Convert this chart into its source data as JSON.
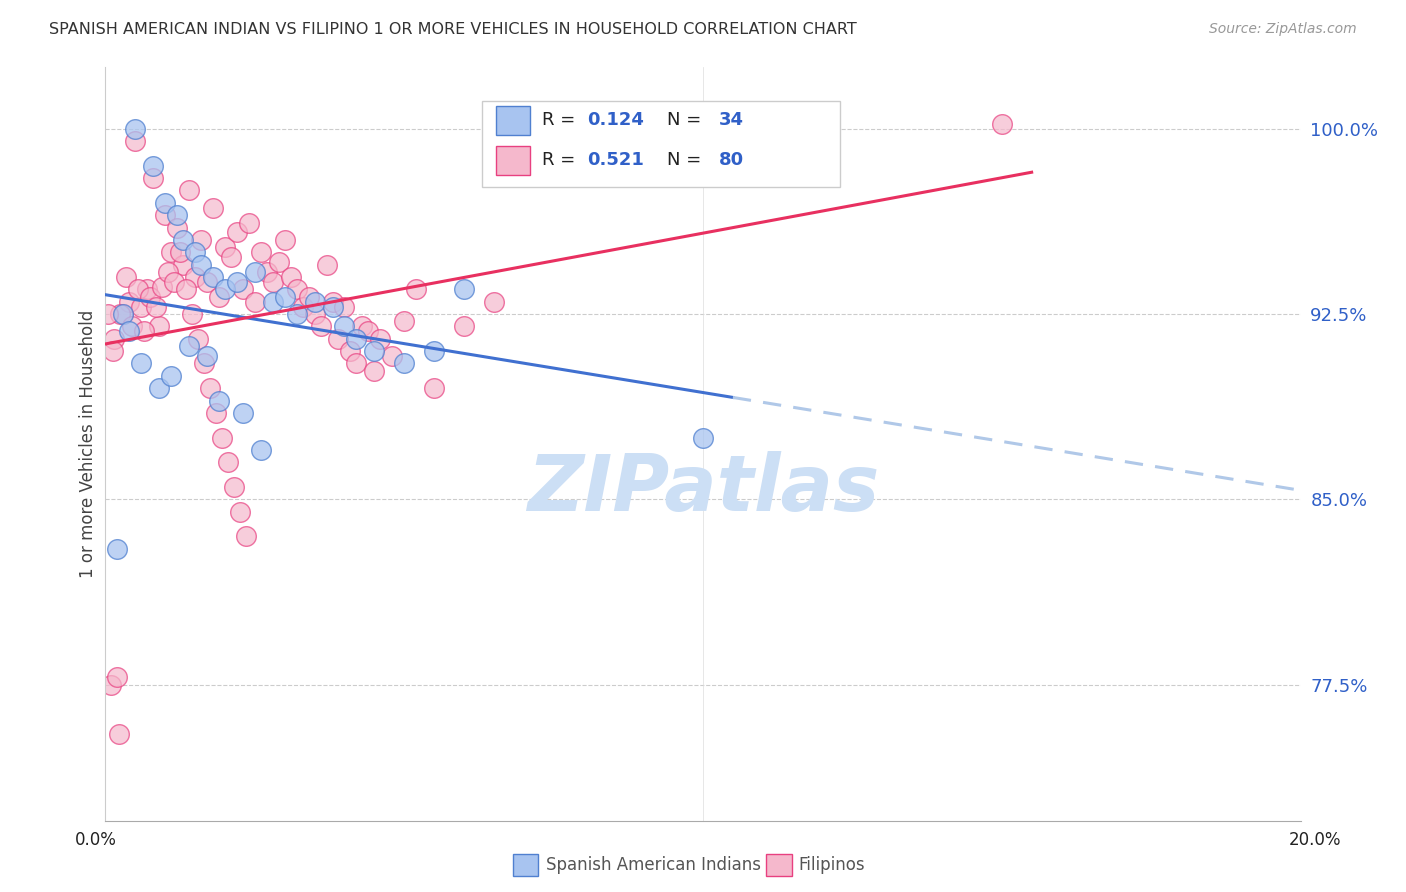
{
  "title": "SPANISH AMERICAN INDIAN VS FILIPINO 1 OR MORE VEHICLES IN HOUSEHOLD CORRELATION CHART",
  "source": "Source: ZipAtlas.com",
  "ylabel": "1 or more Vehicles in Household",
  "y_tick_values": [
    77.5,
    85.0,
    92.5,
    100.0
  ],
  "xlim": [
    0.0,
    20.0
  ],
  "ylim": [
    72.0,
    102.5
  ],
  "legend_blue_r": "0.124",
  "legend_blue_n": "34",
  "legend_pink_r": "0.521",
  "legend_pink_n": "80",
  "blue_fill_color": "#a8c4f0",
  "pink_fill_color": "#f5b8cc",
  "blue_edge_color": "#5080d0",
  "pink_edge_color": "#e84080",
  "blue_line_color": "#4070d0",
  "pink_line_color": "#e83060",
  "blue_dash_color": "#b0c8e8",
  "watermark_color": "#ccdff5",
  "blue_scatter_x": [
    0.5,
    0.8,
    1.0,
    1.2,
    1.3,
    1.5,
    1.6,
    1.8,
    2.0,
    2.2,
    2.5,
    2.8,
    3.0,
    3.2,
    3.5,
    3.8,
    4.0,
    4.2,
    4.5,
    5.0,
    5.5,
    6.0,
    0.3,
    0.4,
    0.6,
    0.9,
    1.1,
    1.4,
    1.7,
    1.9,
    2.3,
    2.6,
    10.0,
    0.2
  ],
  "blue_scatter_y": [
    100.0,
    98.5,
    97.0,
    96.5,
    95.5,
    95.0,
    94.5,
    94.0,
    93.5,
    93.8,
    94.2,
    93.0,
    93.2,
    92.5,
    93.0,
    92.8,
    92.0,
    91.5,
    91.0,
    90.5,
    91.0,
    93.5,
    92.5,
    91.8,
    90.5,
    89.5,
    90.0,
    91.2,
    90.8,
    89.0,
    88.5,
    87.0,
    87.5,
    83.0
  ],
  "pink_scatter_x": [
    0.1,
    0.2,
    0.3,
    0.4,
    0.5,
    0.6,
    0.7,
    0.8,
    0.9,
    1.0,
    1.1,
    1.2,
    1.3,
    1.4,
    1.5,
    1.6,
    1.7,
    1.8,
    1.9,
    2.0,
    2.1,
    2.2,
    2.3,
    2.4,
    2.5,
    2.6,
    2.7,
    2.8,
    2.9,
    3.0,
    3.1,
    3.2,
    3.3,
    3.4,
    3.5,
    3.6,
    3.7,
    3.8,
    3.9,
    4.0,
    4.1,
    4.2,
    4.3,
    4.4,
    4.5,
    4.6,
    4.8,
    5.0,
    5.2,
    5.5,
    6.0,
    6.5,
    7.0,
    0.15,
    0.25,
    0.35,
    0.45,
    0.55,
    0.65,
    0.75,
    0.85,
    0.95,
    1.05,
    1.15,
    1.25,
    1.35,
    1.45,
    1.55,
    1.65,
    1.75,
    1.85,
    1.95,
    2.05,
    2.15,
    2.25,
    2.35,
    15.0,
    0.05,
    0.12,
    0.22
  ],
  "pink_scatter_y": [
    77.5,
    77.8,
    92.5,
    93.0,
    99.5,
    92.8,
    93.5,
    98.0,
    92.0,
    96.5,
    95.0,
    96.0,
    94.5,
    97.5,
    94.0,
    95.5,
    93.8,
    96.8,
    93.2,
    95.2,
    94.8,
    95.8,
    93.5,
    96.2,
    93.0,
    95.0,
    94.2,
    93.8,
    94.6,
    95.5,
    94.0,
    93.5,
    92.8,
    93.2,
    92.5,
    92.0,
    94.5,
    93.0,
    91.5,
    92.8,
    91.0,
    90.5,
    92.0,
    91.8,
    90.2,
    91.5,
    90.8,
    92.2,
    93.5,
    89.5,
    92.0,
    93.0,
    100.0,
    91.5,
    92.5,
    94.0,
    92.0,
    93.5,
    91.8,
    93.2,
    92.8,
    93.6,
    94.2,
    93.8,
    95.0,
    93.5,
    92.5,
    91.5,
    90.5,
    89.5,
    88.5,
    87.5,
    86.5,
    85.5,
    84.5,
    83.5,
    100.2,
    92.5,
    91.0,
    75.5
  ]
}
